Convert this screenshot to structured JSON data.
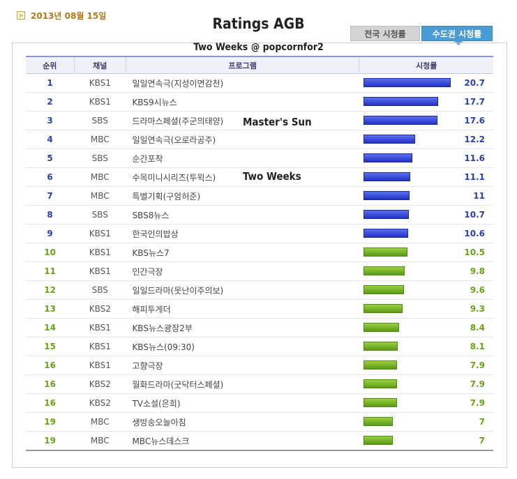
{
  "header": {
    "date_icon": ">",
    "date": "2013년 08월 15일",
    "title": "Ratings AGB",
    "watermark": "Two Weeks @ popcornfor2"
  },
  "tabs": [
    {
      "label": "전국 시청률",
      "active": false
    },
    {
      "label": "수도권 시청률",
      "active": true
    }
  ],
  "overlays": {
    "masters_sun": "Master's Sun",
    "two_weeks": "Two Weeks"
  },
  "table": {
    "columns": [
      "순위",
      "채널",
      "프로그램",
      "시청률"
    ],
    "max_value": 20.7,
    "rows": [
      {
        "rank": "1",
        "channel": "KBS1",
        "program": "일일연속극(지성이면감천)",
        "rating": 20.7,
        "color": "blue"
      },
      {
        "rank": "2",
        "channel": "KBS1",
        "program": "KBS9시뉴스",
        "rating": 17.7,
        "color": "blue"
      },
      {
        "rank": "3",
        "channel": "SBS",
        "program": "드라마스페셜(주군의태양)",
        "rating": 17.6,
        "color": "blue"
      },
      {
        "rank": "4",
        "channel": "MBC",
        "program": "일일연속극(오로라공주)",
        "rating": 12.2,
        "color": "blue"
      },
      {
        "rank": "5",
        "channel": "SBS",
        "program": "순간포착",
        "rating": 11.6,
        "color": "blue"
      },
      {
        "rank": "6",
        "channel": "MBC",
        "program": "수목미니시리즈(투윅스)",
        "rating": 11.1,
        "color": "blue"
      },
      {
        "rank": "7",
        "channel": "MBC",
        "program": "특별기획(구암허준)",
        "rating": 11,
        "color": "blue"
      },
      {
        "rank": "8",
        "channel": "SBS",
        "program": "SBS8뉴스",
        "rating": 10.7,
        "color": "blue"
      },
      {
        "rank": "9",
        "channel": "KBS1",
        "program": "한국인의밥상",
        "rating": 10.6,
        "color": "blue"
      },
      {
        "rank": "10",
        "channel": "KBS1",
        "program": "KBS뉴스7",
        "rating": 10.5,
        "color": "green"
      },
      {
        "rank": "11",
        "channel": "KBS1",
        "program": "인간극장",
        "rating": 9.8,
        "color": "green"
      },
      {
        "rank": "12",
        "channel": "SBS",
        "program": "일일드라마(못난이주의보)",
        "rating": 9.6,
        "color": "green"
      },
      {
        "rank": "13",
        "channel": "KBS2",
        "program": "해피투게더",
        "rating": 9.3,
        "color": "green"
      },
      {
        "rank": "14",
        "channel": "KBS1",
        "program": "KBS뉴스광장2부",
        "rating": 8.4,
        "color": "green"
      },
      {
        "rank": "15",
        "channel": "KBS1",
        "program": "KBS뉴스(09:30)",
        "rating": 8.1,
        "color": "green"
      },
      {
        "rank": "16",
        "channel": "KBS1",
        "program": "고향극장",
        "rating": 7.9,
        "color": "green"
      },
      {
        "rank": "16",
        "channel": "KBS2",
        "program": "월화드라마(굿닥터스페셜)",
        "rating": 7.9,
        "color": "green"
      },
      {
        "rank": "16",
        "channel": "KBS2",
        "program": "TV소설(은희)",
        "rating": 7.9,
        "color": "green"
      },
      {
        "rank": "19",
        "channel": "MBC",
        "program": "생방송오늘아침",
        "rating": 7,
        "color": "green"
      },
      {
        "rank": "19",
        "channel": "MBC",
        "program": "MBC뉴스데스크",
        "rating": 7,
        "color": "green"
      }
    ]
  }
}
